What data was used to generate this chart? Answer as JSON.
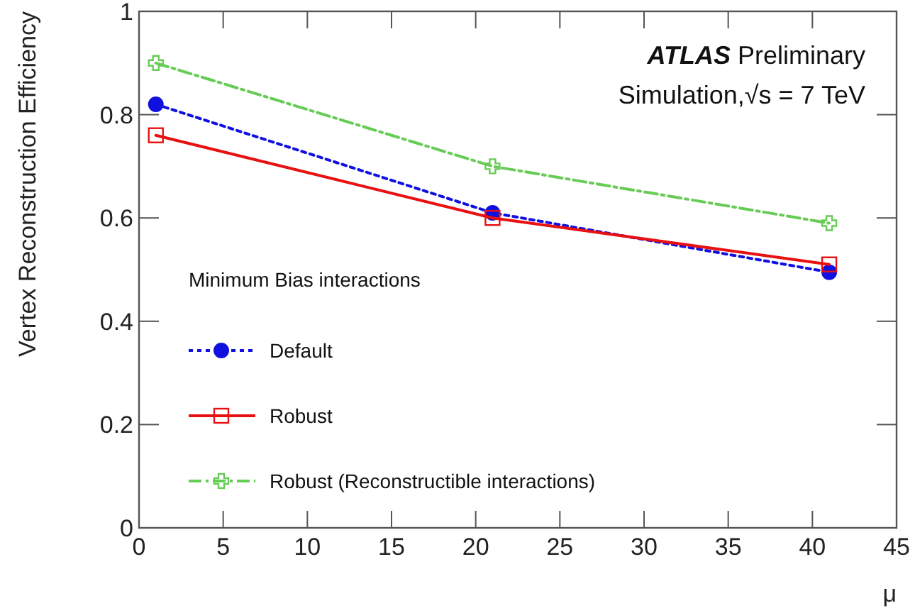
{
  "chart_data": {
    "type": "line",
    "xlabel": "μ",
    "ylabel": "Vertex Reconstruction Efficiency",
    "legend_title": "Minimum Bias interactions",
    "legend": "bottom left",
    "annotations": [
      "ATLAS Preliminary",
      "Simulation,√s = 7 TeV"
    ],
    "x": [
      1,
      21,
      41
    ],
    "series": [
      {
        "name": "Default",
        "color": "#1010e0",
        "values": [
          0.82,
          0.61,
          0.495
        ],
        "marker": "circle",
        "line_style": "dotted"
      },
      {
        "name": "Robust",
        "color": "#e81010",
        "values": [
          0.76,
          0.6,
          0.51
        ],
        "marker": "square",
        "line_style": "solid"
      },
      {
        "name": "Robust (Reconstructible interactions)",
        "color": "#66cc55",
        "values": [
          0.9,
          0.7,
          0.59
        ],
        "marker": "cross",
        "line_style": "dashed"
      }
    ],
    "xlim": [
      0,
      45
    ],
    "xticks": [
      0,
      5,
      10,
      15,
      20,
      25,
      30,
      35,
      40,
      45
    ],
    "ylim": [
      0,
      1
    ],
    "yticks": [
      0,
      0.2,
      0.4,
      0.6,
      0.8,
      1
    ],
    "grid": false
  }
}
